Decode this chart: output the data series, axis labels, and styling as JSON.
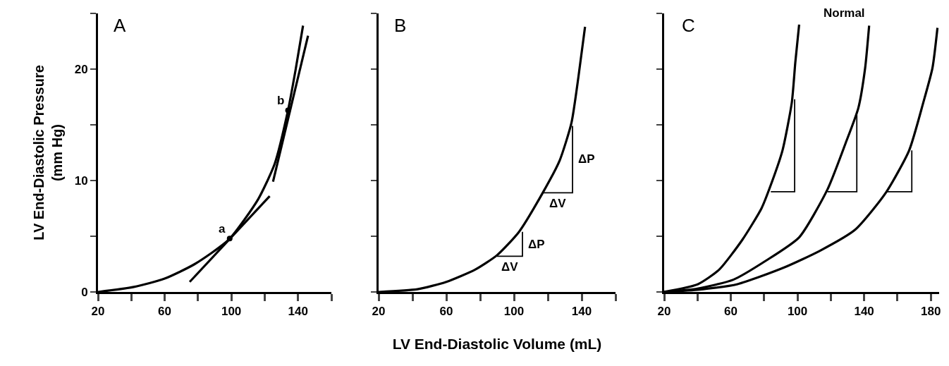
{
  "chart_data": [
    {
      "type": "line",
      "title": "A",
      "ylabel": "LV End-Diastolic Pressure\n(mm Hg)",
      "xlim": [
        20,
        160
      ],
      "xticks": [
        20,
        {
          "value": 40,
          "label": null
        },
        60,
        {
          "value": 80,
          "label": null
        },
        100,
        {
          "value": 120,
          "label": null
        },
        140,
        {
          "value": 160,
          "label": null
        }
      ],
      "ylim": [
        0,
        25
      ],
      "yticks": [
        0,
        {
          "value": 5,
          "label": null
        },
        10,
        {
          "value": 15,
          "label": null
        },
        20,
        {
          "value": 25,
          "label": null
        }
      ],
      "grid": false,
      "line_style": "solid",
      "marker": "none",
      "series": [
        {
          "color": "#000000",
          "x": [
            20,
            41.5,
            60,
            78,
            98.5,
            116,
            126,
            134,
            138.5,
            143
          ],
          "values": [
            0,
            0.45,
            1.2,
            2.5,
            4.7,
            8.3,
            11.5,
            16.3,
            19.9,
            23.9
          ]
        },
        {
          "color": "#000000",
          "x": [
            75,
            123
          ],
          "values": [
            0.9,
            8.6
          ]
        },
        {
          "color": "#000000",
          "x": [
            125,
            146
          ],
          "values": [
            9.9,
            23
          ]
        },
        {
          "type": "scatter",
          "marker": "circle",
          "color": "#000000",
          "x": [
            99,
            134
          ],
          "values": [
            4.8,
            16.3
          ]
        }
      ],
      "annotations": [
        {
          "text": "a",
          "x": 99,
          "y": 4.8
        },
        {
          "text": "b",
          "x": 134,
          "y": 16.3
        }
      ]
    },
    {
      "type": "line",
      "title": "B",
      "xlabel": "LV End-Diastolic Volume (mL)",
      "tick_labels": "x",
      "xlim": [
        20,
        160
      ],
      "xticks": [
        20,
        {
          "value": 40,
          "label": null
        },
        60,
        {
          "value": 80,
          "label": null
        },
        100,
        {
          "value": 120,
          "label": null
        },
        140,
        {
          "value": 160,
          "label": null
        }
      ],
      "ylim": [
        0,
        25
      ],
      "yticks": [
        0,
        5,
        10,
        15,
        20,
        25
      ],
      "grid": false,
      "line_style": "solid",
      "marker": "none",
      "series": [
        {
          "color": "#000000",
          "x": [
            20,
            43,
            60,
            77,
            90,
            103,
            117,
            127,
            134,
            138,
            142
          ],
          "values": [
            0,
            0.25,
            0.9,
            2,
            3.3,
            5.4,
            8.9,
            11.8,
            15.2,
            19.2,
            23.8
          ]
        },
        {
          "color": "#000000",
          "x": [
            90,
            105,
            105
          ],
          "values": [
            3.2,
            3.2,
            5.4
          ]
        },
        {
          "color": "#000000",
          "x": [
            117,
            134.6,
            134.6
          ],
          "values": [
            8.9,
            8.9,
            14.9
          ]
        }
      ],
      "annotations": [
        {
          "text": "ΔV",
          "x": 97.5,
          "y": 3.2
        },
        {
          "text": "ΔP",
          "x": 105,
          "y": 4.3
        },
        {
          "text": "ΔV",
          "x": 125.8,
          "y": 8.9
        },
        {
          "text": "ΔP",
          "x": 134.6,
          "y": 11.9
        }
      ]
    },
    {
      "type": "line",
      "title": "C",
      "tick_labels": "x",
      "xlim": [
        20,
        185
      ],
      "xticks": [
        20,
        {
          "value": 40,
          "label": null
        },
        60,
        {
          "value": 80,
          "label": null
        },
        100,
        {
          "value": 120,
          "label": null
        },
        140,
        {
          "value": 160,
          "label": null
        },
        180
      ],
      "ylim": [
        0,
        25
      ],
      "yticks": [
        0,
        5,
        10,
        15,
        20,
        25
      ],
      "grid": false,
      "line_style": "solid",
      "marker": "none",
      "series": [
        {
          "color": "#000000",
          "x": [
            20,
            40.3,
            53,
            67,
            78.4,
            84,
            91,
            96.6,
            98.7,
            101
          ],
          "values": [
            0,
            0.7,
            2,
            4.7,
            7.5,
            9.6,
            12.7,
            17,
            20.6,
            24
          ]
        },
        {
          "color": "#000000",
          "x": [
            20,
            40,
            61.5,
            81,
            101,
            118,
            129,
            136.5,
            140.6,
            143
          ],
          "values": [
            0,
            0.3,
            1.1,
            2.8,
            4.9,
            9.2,
            13.4,
            16.5,
            20.1,
            23.9
          ]
        },
        {
          "color": "#000000",
          "x": [
            20,
            40,
            64,
            92,
            113.5,
            134.7,
            153,
            167,
            175.5,
            181,
            184
          ],
          "values": [
            0,
            0.2,
            0.7,
            2.2,
            3.7,
            5.6,
            8.9,
            12.7,
            17,
            20.1,
            23.7
          ]
        },
        {
          "color": "#000000",
          "x": [
            84,
            98.3,
            98.3
          ],
          "values": [
            9,
            9,
            17.3
          ]
        },
        {
          "color": "#000000",
          "x": [
            118,
            135.6,
            135.6
          ],
          "values": [
            9,
            9,
            15.9
          ]
        },
        {
          "color": "#000000",
          "x": [
            153,
            168.6,
            168.6
          ],
          "values": [
            9,
            9,
            12.7
          ]
        }
      ],
      "annotations": [
        {
          "text": "Normal",
          "x": 143,
          "y": 24.2
        }
      ]
    }
  ]
}
